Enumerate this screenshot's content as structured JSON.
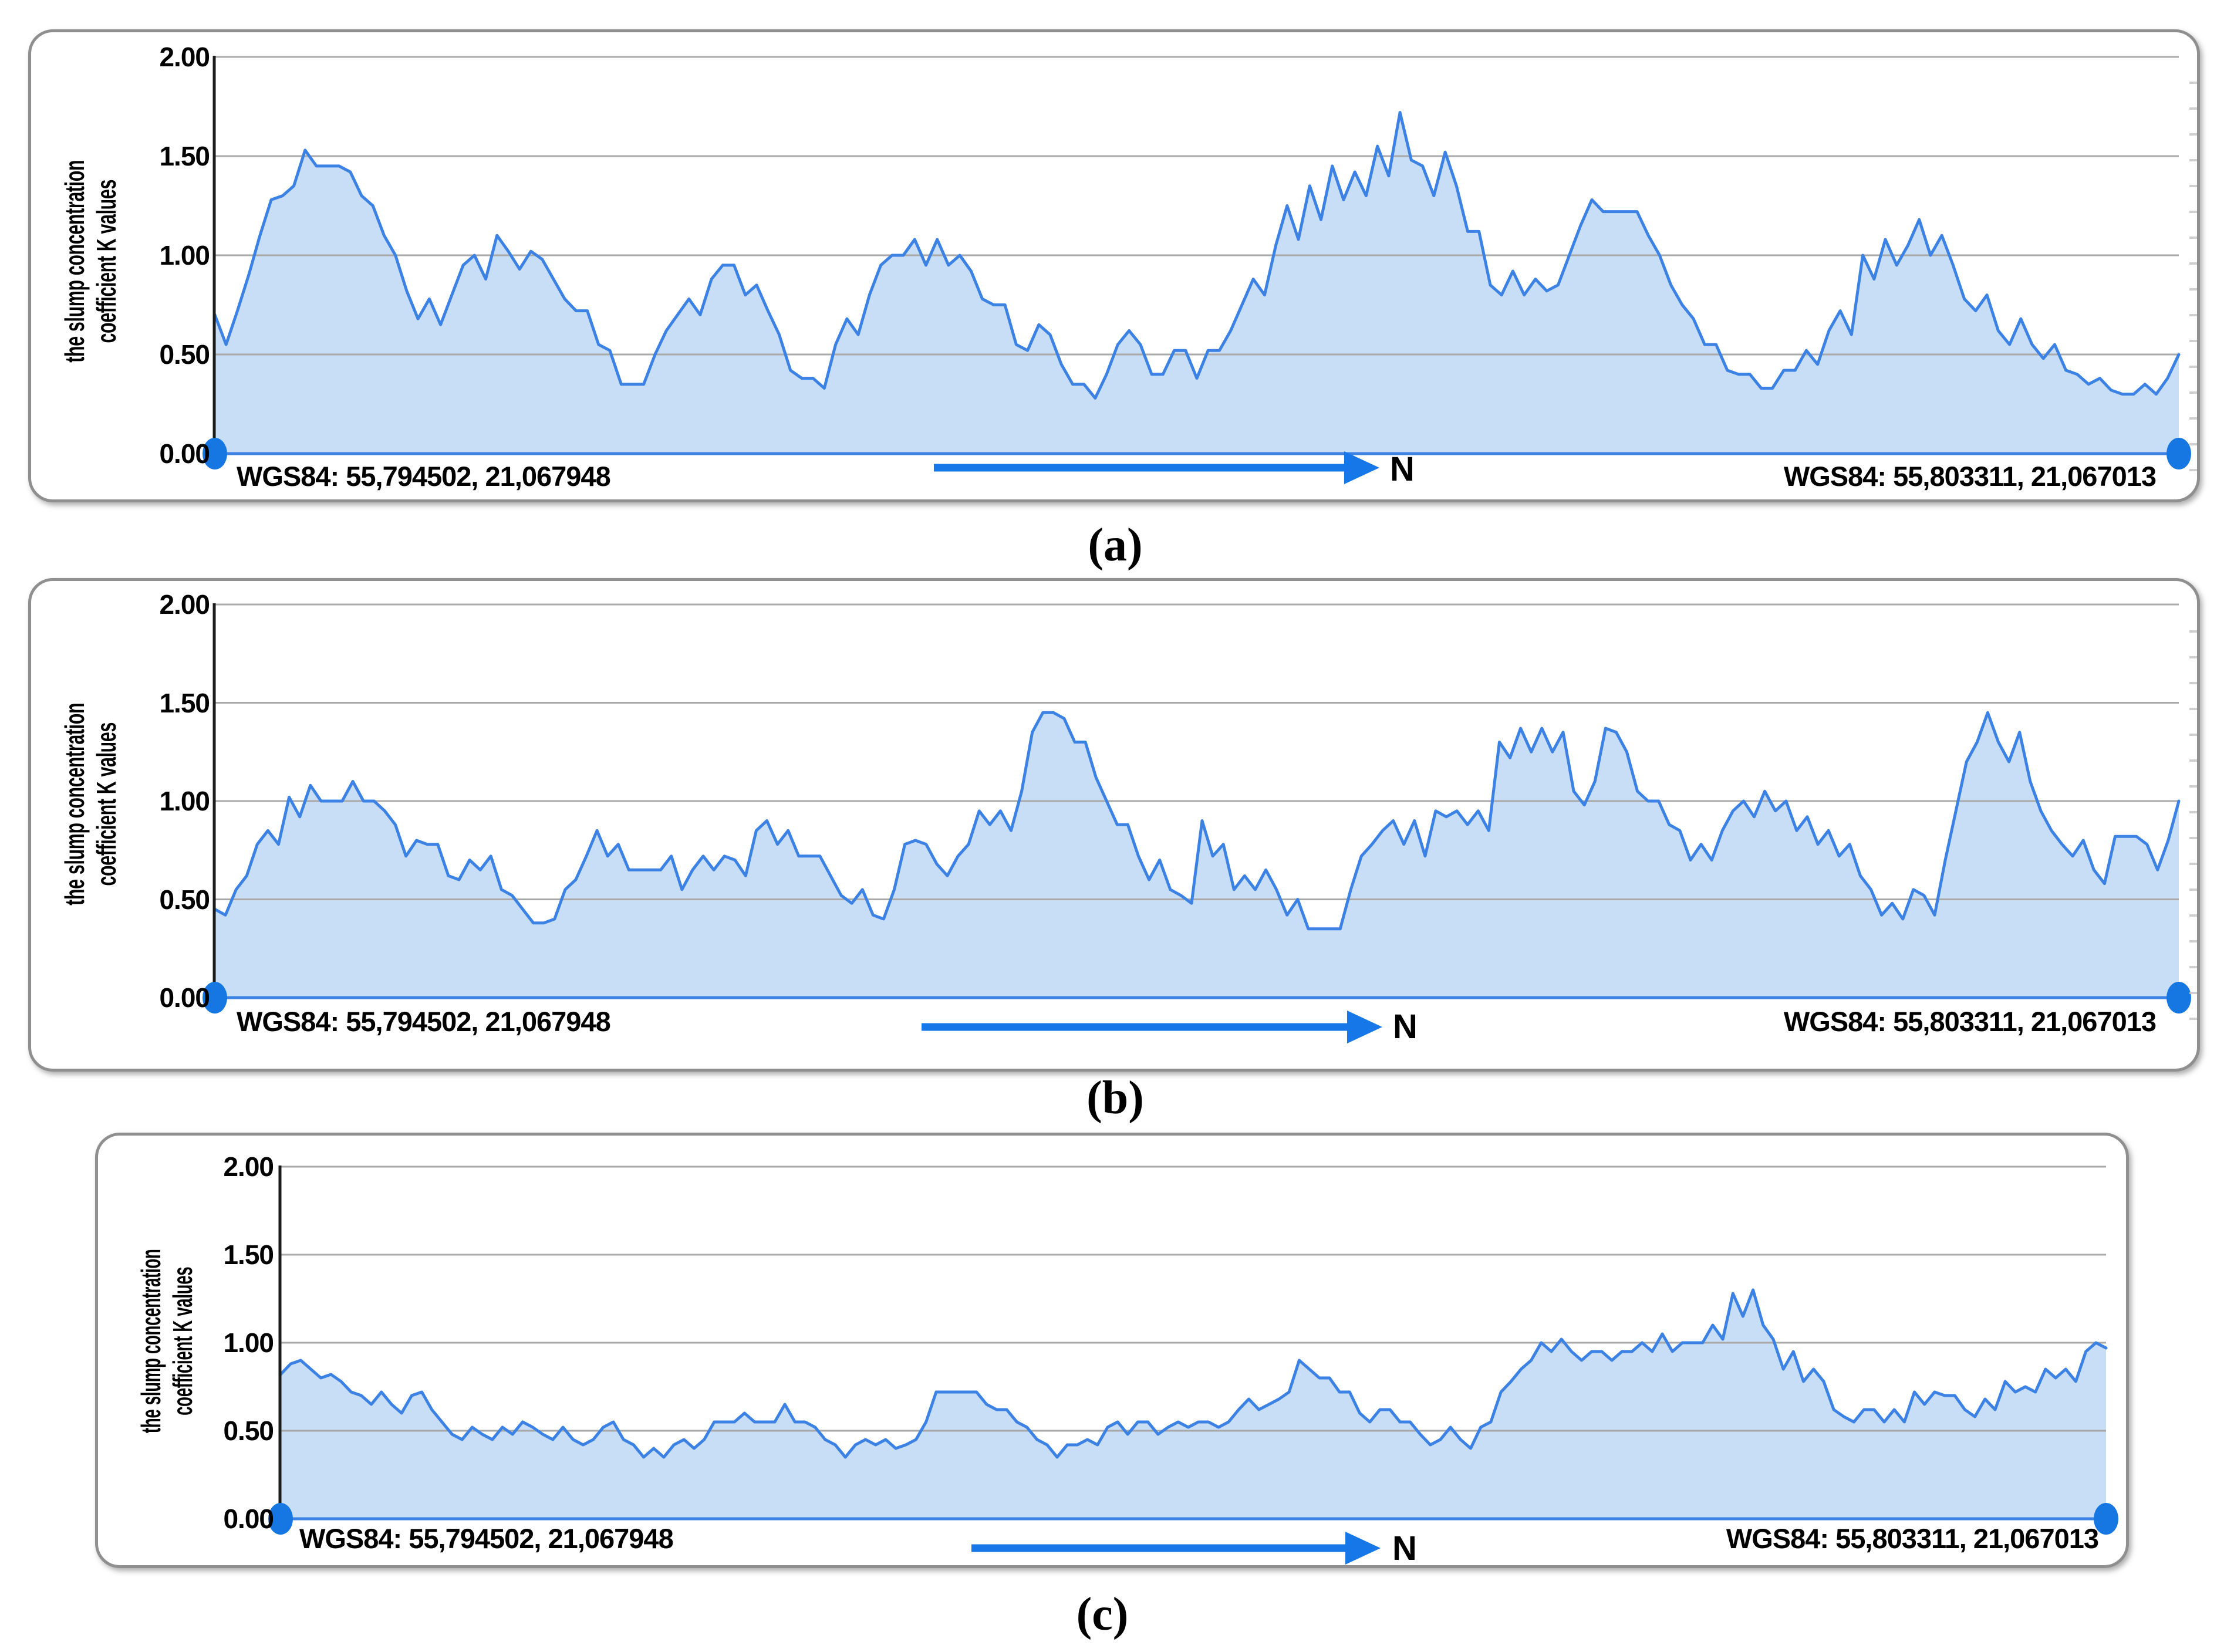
{
  "figure": {
    "captions": [
      "(a)",
      "(b)",
      "(c)"
    ]
  },
  "shared": {
    "y_axis_label_line1": "the slump concentration",
    "y_axis_label_line2": "coefficient K values",
    "y_ticks": [
      "2.00",
      "1.50",
      "1.00",
      "0.50",
      "0.00"
    ],
    "start_coordinate_label": "WGS84: 55,794502, 21,067948",
    "end_coordinate_label": "WGS84: 55,803311, 21,067013",
    "north_label": "N"
  },
  "colors": {
    "area_fill": "#c8ddf6",
    "area_line": "#3b82e4",
    "marker": "#1677e3",
    "arrow": "#1678e8",
    "gridline": "#a9a9a9",
    "axis": "#1c1c1c",
    "panel_border": "#8f8f8f"
  },
  "chart_data": [
    {
      "id": "a",
      "type": "area",
      "title": "",
      "xlabel": "",
      "ylabel": "the slump concentration coefficient K values",
      "ylim": [
        0,
        2.0
      ],
      "yticks": [
        2.0,
        1.5,
        1.0,
        0.5,
        0.0
      ],
      "grid": true,
      "legend": "none",
      "x_start_annotation": "WGS84: 55,794502, 21,067948",
      "x_end_annotation": "WGS84: 55,803311, 21,067013",
      "direction_annotation": "N",
      "values": [
        0.7,
        0.55,
        0.72,
        0.9,
        1.1,
        1.28,
        1.3,
        1.35,
        1.53,
        1.45,
        1.45,
        1.45,
        1.42,
        1.3,
        1.25,
        1.1,
        1.0,
        0.82,
        0.68,
        0.78,
        0.65,
        0.8,
        0.95,
        1.0,
        0.88,
        1.1,
        1.02,
        0.93,
        1.02,
        0.98,
        0.88,
        0.78,
        0.72,
        0.72,
        0.55,
        0.52,
        0.35,
        0.35,
        0.35,
        0.5,
        0.62,
        0.7,
        0.78,
        0.7,
        0.88,
        0.95,
        0.95,
        0.8,
        0.85,
        0.72,
        0.6,
        0.42,
        0.38,
        0.38,
        0.33,
        0.55,
        0.68,
        0.6,
        0.8,
        0.95,
        1.0,
        1.0,
        1.08,
        0.95,
        1.08,
        0.95,
        1.0,
        0.92,
        0.78,
        0.75,
        0.75,
        0.55,
        0.52,
        0.65,
        0.6,
        0.45,
        0.35,
        0.35,
        0.28,
        0.4,
        0.55,
        0.62,
        0.55,
        0.4,
        0.4,
        0.52,
        0.52,
        0.38,
        0.52,
        0.52,
        0.62,
        0.75,
        0.88,
        0.8,
        1.05,
        1.25,
        1.08,
        1.35,
        1.18,
        1.45,
        1.28,
        1.42,
        1.3,
        1.55,
        1.4,
        1.72,
        1.48,
        1.45,
        1.3,
        1.52,
        1.35,
        1.12,
        1.12,
        0.85,
        0.8,
        0.92,
        0.8,
        0.88,
        0.82,
        0.85,
        1.0,
        1.15,
        1.28,
        1.22,
        1.22,
        1.22,
        1.22,
        1.1,
        1.0,
        0.85,
        0.75,
        0.68,
        0.55,
        0.55,
        0.42,
        0.4,
        0.4,
        0.33,
        0.33,
        0.42,
        0.42,
        0.52,
        0.45,
        0.62,
        0.72,
        0.6,
        1.0,
        0.88,
        1.08,
        0.95,
        1.05,
        1.18,
        1.0,
        1.1,
        0.95,
        0.78,
        0.72,
        0.8,
        0.62,
        0.55,
        0.68,
        0.55,
        0.48,
        0.55,
        0.42,
        0.4,
        0.35,
        0.38,
        0.32,
        0.3,
        0.3,
        0.35,
        0.3,
        0.38,
        0.5
      ]
    },
    {
      "id": "b",
      "type": "area",
      "title": "",
      "xlabel": "",
      "ylabel": "the slump concentration coefficient K values",
      "ylim": [
        0,
        2.0
      ],
      "yticks": [
        2.0,
        1.5,
        1.0,
        0.5,
        0.0
      ],
      "grid": true,
      "legend": "none",
      "x_start_annotation": "WGS84: 55,794502, 21,067948",
      "x_end_annotation": "WGS84: 55,803311, 21,067013",
      "direction_annotation": "N",
      "values": [
        0.45,
        0.42,
        0.55,
        0.62,
        0.78,
        0.85,
        0.78,
        1.02,
        0.92,
        1.08,
        1.0,
        1.0,
        1.0,
        1.1,
        1.0,
        1.0,
        0.95,
        0.88,
        0.72,
        0.8,
        0.78,
        0.78,
        0.62,
        0.6,
        0.7,
        0.65,
        0.72,
        0.55,
        0.52,
        0.45,
        0.38,
        0.38,
        0.4,
        0.55,
        0.6,
        0.72,
        0.85,
        0.72,
        0.78,
        0.65,
        0.65,
        0.65,
        0.65,
        0.72,
        0.55,
        0.65,
        0.72,
        0.65,
        0.72,
        0.7,
        0.62,
        0.85,
        0.9,
        0.78,
        0.85,
        0.72,
        0.72,
        0.72,
        0.62,
        0.52,
        0.48,
        0.55,
        0.42,
        0.4,
        0.55,
        0.78,
        0.8,
        0.78,
        0.68,
        0.62,
        0.72,
        0.78,
        0.95,
        0.88,
        0.95,
        0.85,
        1.05,
        1.35,
        1.45,
        1.45,
        1.42,
        1.3,
        1.3,
        1.12,
        1.0,
        0.88,
        0.88,
        0.72,
        0.6,
        0.7,
        0.55,
        0.52,
        0.48,
        0.9,
        0.72,
        0.78,
        0.55,
        0.62,
        0.55,
        0.65,
        0.55,
        0.42,
        0.5,
        0.35,
        0.35,
        0.35,
        0.35,
        0.55,
        0.72,
        0.78,
        0.85,
        0.9,
        0.78,
        0.9,
        0.72,
        0.95,
        0.92,
        0.95,
        0.88,
        0.95,
        0.85,
        1.3,
        1.22,
        1.37,
        1.25,
        1.37,
        1.25,
        1.35,
        1.05,
        0.98,
        1.1,
        1.37,
        1.35,
        1.25,
        1.05,
        1.0,
        1.0,
        0.88,
        0.85,
        0.7,
        0.78,
        0.7,
        0.85,
        0.95,
        1.0,
        0.92,
        1.05,
        0.95,
        1.0,
        0.85,
        0.92,
        0.78,
        0.85,
        0.72,
        0.78,
        0.62,
        0.55,
        0.42,
        0.48,
        0.4,
        0.55,
        0.52,
        0.42,
        0.7,
        0.95,
        1.2,
        1.3,
        1.45,
        1.3,
        1.2,
        1.35,
        1.1,
        0.95,
        0.85,
        0.78,
        0.72,
        0.8,
        0.65,
        0.58,
        0.82,
        0.82,
        0.82,
        0.78,
        0.65,
        0.8,
        1.0
      ]
    },
    {
      "id": "c",
      "type": "area",
      "title": "",
      "xlabel": "",
      "ylabel": "the slump concentration coefficient K values",
      "ylim": [
        0,
        2.0
      ],
      "yticks": [
        2.0,
        1.5,
        1.0,
        0.5,
        0.0
      ],
      "grid": true,
      "legend": "none",
      "x_start_annotation": "WGS84: 55,794502, 21,067948",
      "x_end_annotation": "WGS84: 55,803311, 21,067013",
      "direction_annotation": "N",
      "values": [
        0.82,
        0.88,
        0.9,
        0.85,
        0.8,
        0.82,
        0.78,
        0.72,
        0.7,
        0.65,
        0.72,
        0.65,
        0.6,
        0.7,
        0.72,
        0.62,
        0.55,
        0.48,
        0.45,
        0.52,
        0.48,
        0.45,
        0.52,
        0.48,
        0.55,
        0.52,
        0.48,
        0.45,
        0.52,
        0.45,
        0.42,
        0.45,
        0.52,
        0.55,
        0.45,
        0.42,
        0.35,
        0.4,
        0.35,
        0.42,
        0.45,
        0.4,
        0.45,
        0.55,
        0.55,
        0.55,
        0.6,
        0.55,
        0.55,
        0.55,
        0.65,
        0.55,
        0.55,
        0.52,
        0.45,
        0.42,
        0.35,
        0.42,
        0.45,
        0.42,
        0.45,
        0.4,
        0.42,
        0.45,
        0.55,
        0.72,
        0.72,
        0.72,
        0.72,
        0.72,
        0.65,
        0.62,
        0.62,
        0.55,
        0.52,
        0.45,
        0.42,
        0.35,
        0.42,
        0.42,
        0.45,
        0.42,
        0.52,
        0.55,
        0.48,
        0.55,
        0.55,
        0.48,
        0.52,
        0.55,
        0.52,
        0.55,
        0.55,
        0.52,
        0.55,
        0.62,
        0.68,
        0.62,
        0.65,
        0.68,
        0.72,
        0.9,
        0.85,
        0.8,
        0.8,
        0.72,
        0.72,
        0.6,
        0.55,
        0.62,
        0.62,
        0.55,
        0.55,
        0.48,
        0.42,
        0.45,
        0.52,
        0.45,
        0.4,
        0.52,
        0.55,
        0.72,
        0.78,
        0.85,
        0.9,
        1.0,
        0.95,
        1.02,
        0.95,
        0.9,
        0.95,
        0.95,
        0.9,
        0.95,
        0.95,
        1.0,
        0.95,
        1.05,
        0.95,
        1.0,
        1.0,
        1.0,
        1.1,
        1.02,
        1.28,
        1.15,
        1.3,
        1.1,
        1.02,
        0.85,
        0.95,
        0.78,
        0.85,
        0.78,
        0.62,
        0.58,
        0.55,
        0.62,
        0.62,
        0.55,
        0.62,
        0.55,
        0.72,
        0.65,
        0.72,
        0.7,
        0.7,
        0.62,
        0.58,
        0.68,
        0.62,
        0.78,
        0.72,
        0.75,
        0.72,
        0.85,
        0.8,
        0.85,
        0.78,
        0.95,
        1.0,
        0.97
      ]
    }
  ]
}
